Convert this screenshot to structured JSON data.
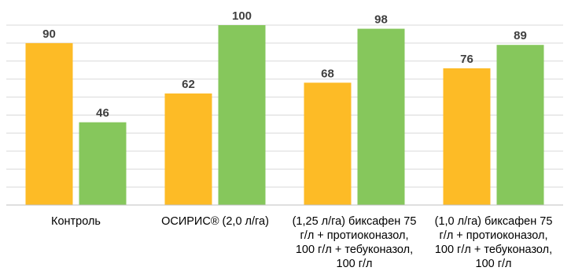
{
  "chart_data": {
    "type": "bar",
    "title": "",
    "xlabel": "",
    "ylabel": "",
    "ylim": [
      0,
      100
    ],
    "grid": true,
    "categories": [
      "Контроль",
      "ОСИРИС® (2,0 л/га)",
      "(1,25 л/га) биксафен 75\nг/л + протиоконазол,\n100 г/л + тебуконазол,\n100 г/л",
      "(1,0 л/га) биксафен 75\nг/л + протиоконазол,\n100 г/л + тебуконазол,\n100 г/л"
    ],
    "series": [
      {
        "color": "#fdbb26",
        "values": [
          90,
          62,
          68,
          76
        ]
      },
      {
        "color": "#86c75c",
        "values": [
          46,
          100,
          98,
          89
        ]
      }
    ]
  }
}
